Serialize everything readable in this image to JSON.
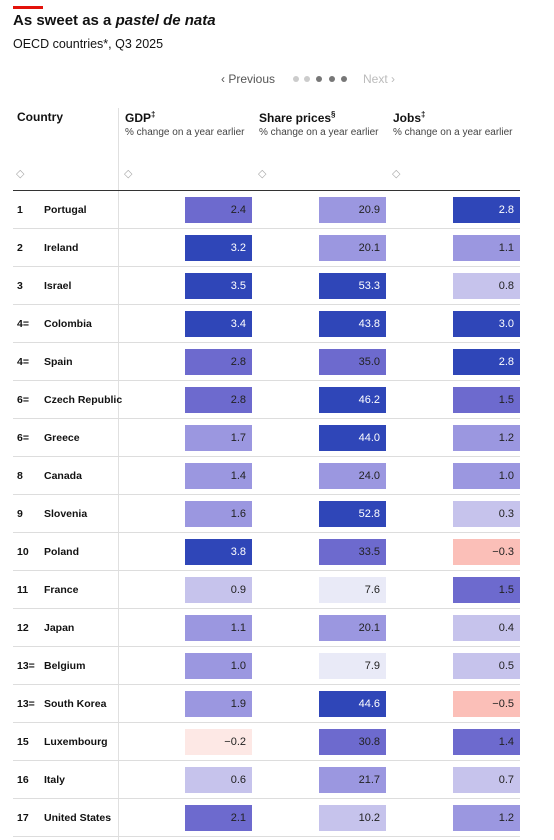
{
  "header": {
    "title_plain": "As sweet as a ",
    "title_italic": "pastel de nata",
    "subtitle": "OECD countries*, Q3 2025"
  },
  "pagination": {
    "previous": "Previous",
    "next": "Next"
  },
  "table": {
    "columns": [
      {
        "name": "Country"
      },
      {
        "name": "GDP",
        "mark": "‡",
        "sublabel": "% change on a year earlier"
      },
      {
        "name": "Share prices",
        "mark": "§",
        "sublabel": "% change on a year earlier"
      },
      {
        "name": "Jobs",
        "mark": "‡",
        "sublabel": "% change on a year earlier"
      }
    ],
    "rows": [
      [
        "1",
        "Portugal",
        "2.4",
        "20.9",
        "2.8"
      ],
      [
        "2",
        "Ireland",
        "3.2",
        "20.1",
        "1.1"
      ],
      [
        "3",
        "Israel",
        "3.5",
        "53.3",
        "0.8"
      ],
      [
        "4=",
        "Colombia",
        "3.4",
        "43.8",
        "3.0"
      ],
      [
        "4=",
        "Spain",
        "2.8",
        "35.0",
        "2.8"
      ],
      [
        "6=",
        "Czech Republic",
        "2.8",
        "46.2",
        "1.5"
      ],
      [
        "6=",
        "Greece",
        "1.7",
        "44.0",
        "1.2"
      ],
      [
        "8",
        "Canada",
        "1.4",
        "24.0",
        "1.0"
      ],
      [
        "9",
        "Slovenia",
        "1.6",
        "52.8",
        "0.3"
      ],
      [
        "10",
        "Poland",
        "3.8",
        "33.5",
        "−0.3"
      ],
      [
        "11",
        "France",
        "0.9",
        "7.6",
        "1.5"
      ],
      [
        "12",
        "Japan",
        "1.1",
        "20.1",
        "0.4"
      ],
      [
        "13=",
        "Belgium",
        "1.0",
        "7.9",
        "0.5"
      ],
      [
        "13=",
        "South Korea",
        "1.9",
        "44.6",
        "−0.5"
      ],
      [
        "15",
        "Luxembourg",
        "−0.2",
        "30.8",
        "1.4"
      ],
      [
        "16",
        "Italy",
        "0.6",
        "21.7",
        "0.7"
      ],
      [
        "17",
        "United States",
        "2.1",
        "10.2",
        "1.2"
      ]
    ]
  }
}
